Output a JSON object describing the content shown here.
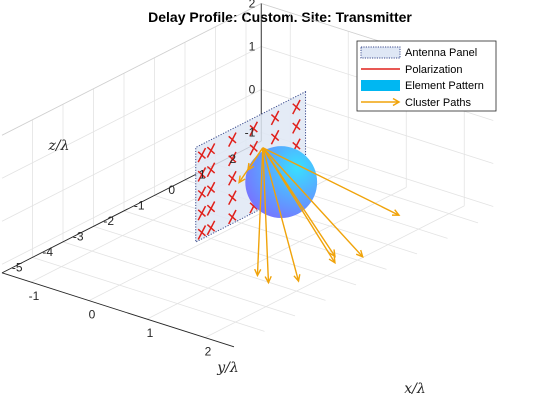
{
  "colors": {
    "panel_fill": "#dfe7f5",
    "panel_edge": "#3a4a8c",
    "polarization": "#e0201b",
    "pattern_light": "#38e0ff",
    "pattern_dark": "#7b6dff",
    "legend_pattern": "#00b7f2",
    "cluster": "#f0a30a",
    "grid": "#e3e3e3",
    "axis": "#262626"
  },
  "chart_data": {
    "type": "3d-line",
    "title": "Delay Profile: Custom. Site: Transmitter",
    "xlabel": "x/λ",
    "ylabel": "y/λ",
    "zlabel": "z/λ",
    "xlim": [
      -1.5,
      2.5
    ],
    "ylim": [
      -6,
      2.5
    ],
    "zlim": [
      -1.2,
      2
    ],
    "xticks": [
      "-1",
      "0",
      "1",
      "2"
    ],
    "yticks": [
      "2",
      "1",
      "0",
      "-1",
      "-2",
      "-3",
      "-4",
      "-5"
    ],
    "zticks": [
      "2",
      "1",
      "0",
      "-1"
    ],
    "grid": true,
    "legend_placement": "top-right",
    "legend": [
      {
        "label": "Antenna Panel",
        "icon": "panel-swatch"
      },
      {
        "label": "Polarization",
        "icon": "red-line"
      },
      {
        "label": "Element Pattern",
        "icon": "cyan-patch"
      },
      {
        "label": "Cluster Paths",
        "icon": "orange-arrow"
      }
    ],
    "antenna_panel": {
      "corners": [
        [
          0,
          1.1,
          1.1
        ],
        [
          0,
          1.1,
          -1.1
        ],
        [
          0,
          -2.5,
          -1.1
        ],
        [
          0,
          -2.5,
          1.1
        ]
      ],
      "element_rows_z": [
        0.85,
        0.4,
        -0.05,
        -0.5,
        -0.95
      ],
      "element_cols_y": [
        0.8,
        0.1,
        -0.6,
        -1.3,
        -2.0,
        -2.3
      ],
      "polarization_tick_length": 0.12
    },
    "element_pattern": {
      "center": [
        1,
        -1.6,
        0.4
      ],
      "radius": 1.05
    },
    "cluster_paths": {
      "origin": [
        0,
        -0.3,
        0.3
      ],
      "endpoints": [
        [
          2.4,
          -0.4,
          -0.2
        ],
        [
          2.3,
          -1.4,
          -0.85
        ],
        [
          2.4,
          -2.5,
          -0.4
        ],
        [
          2.4,
          -2.5,
          -0.55
        ],
        [
          2.35,
          -3.6,
          -0.6
        ],
        [
          2.2,
          -4.3,
          -0.45
        ],
        [
          1.8,
          -3.9,
          -0.6
        ],
        [
          -0.1,
          -0.6,
          -0.15
        ],
        [
          -0.2,
          -0.7,
          -0.45
        ]
      ]
    }
  }
}
